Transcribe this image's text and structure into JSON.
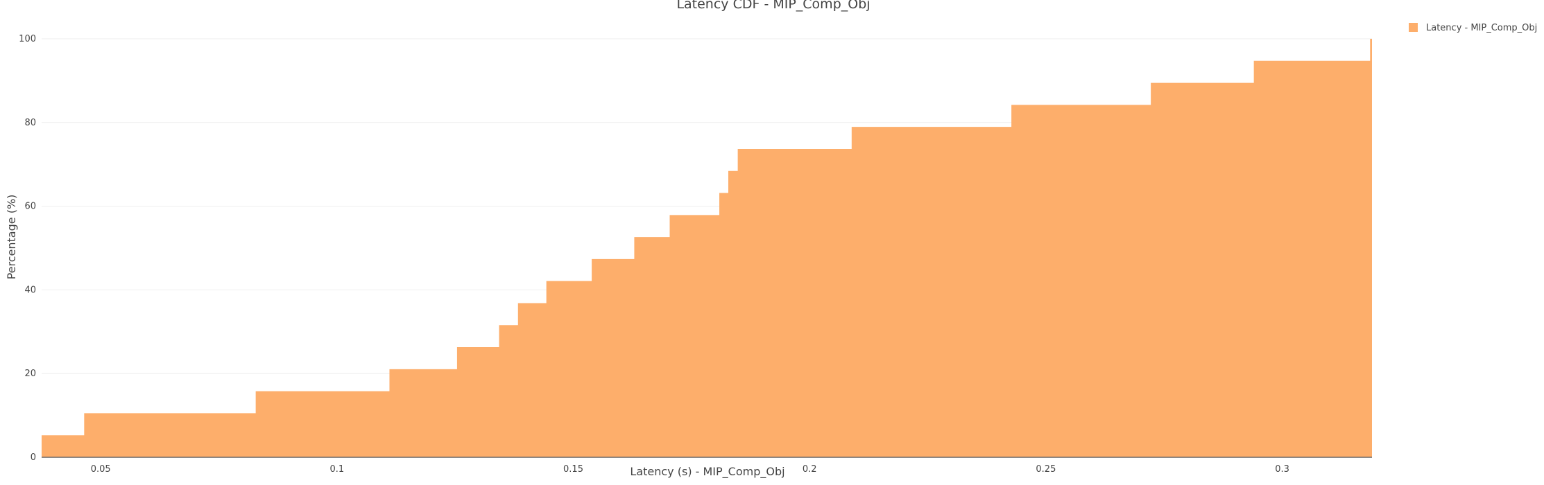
{
  "chart_data": {
    "type": "area",
    "title": "Latency CDF - MIP_Comp_Obj",
    "xlabel": "Latency (s) - MIP_Comp_Obj",
    "ylabel": "Percentage (%)",
    "xlim": [
      0.0375,
      0.319
    ],
    "ylim": [
      0,
      100
    ],
    "x_ticks": [
      0.05,
      0.1,
      0.15,
      0.2,
      0.25,
      0.3
    ],
    "x_tick_labels": [
      "0.05",
      "0.1",
      "0.15",
      "0.2",
      "0.25",
      "0.3"
    ],
    "y_ticks": [
      0,
      20,
      40,
      60,
      80,
      100
    ],
    "y_tick_labels": [
      "0",
      "20",
      "40",
      "60",
      "80",
      "100"
    ],
    "grid": true,
    "legend_position": "top-right",
    "series": [
      {
        "name": "Latency - MIP_Comp_Obj",
        "color": "#fdae6b",
        "step": "post",
        "x": [
          0.0375,
          0.0465,
          0.0828,
          0.1111,
          0.1254,
          0.1343,
          0.1383,
          0.1443,
          0.1539,
          0.1629,
          0.1704,
          0.1809,
          0.1828,
          0.1848,
          0.2089,
          0.2427,
          0.2722,
          0.294,
          0.3186,
          0.319
        ],
        "y": [
          5.26,
          10.53,
          15.79,
          21.05,
          26.32,
          31.58,
          36.84,
          42.11,
          47.37,
          52.63,
          57.89,
          63.16,
          68.42,
          73.68,
          78.95,
          84.21,
          89.47,
          94.74,
          100,
          100
        ]
      }
    ]
  }
}
